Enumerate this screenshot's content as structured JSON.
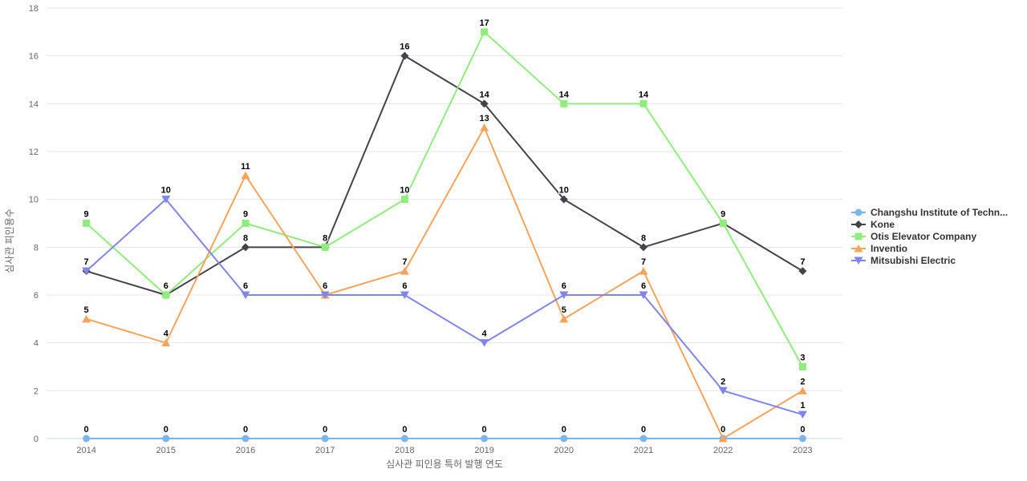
{
  "chart_data": {
    "type": "line",
    "categories": [
      "2014",
      "2015",
      "2016",
      "2017",
      "2018",
      "2019",
      "2020",
      "2021",
      "2022",
      "2023"
    ],
    "series": [
      {
        "name": "Changshu Institute of Techn...",
        "color": "#7cb5ec",
        "marker": "circle",
        "values": [
          0,
          0,
          0,
          0,
          0,
          0,
          0,
          0,
          0,
          0
        ]
      },
      {
        "name": "Kone",
        "color": "#434348",
        "marker": "diamond",
        "values": [
          7,
          6,
          8,
          8,
          16,
          14,
          10,
          8,
          9,
          7
        ]
      },
      {
        "name": "Otis Elevator Company",
        "color": "#90ed7d",
        "marker": "square",
        "values": [
          9,
          6,
          9,
          8,
          10,
          17,
          14,
          14,
          9,
          3
        ]
      },
      {
        "name": "Inventio",
        "color": "#f7a35c",
        "marker": "triangle",
        "values": [
          5,
          4,
          11,
          6,
          7,
          13,
          5,
          7,
          0,
          2
        ]
      },
      {
        "name": "Mitsubishi Electric",
        "color": "#8085e9",
        "marker": "triangle-down",
        "values": [
          7,
          10,
          6,
          6,
          6,
          4,
          6,
          6,
          2,
          1
        ]
      }
    ],
    "title": "",
    "xlabel": "심사관 피인용 특허 발행 연도",
    "ylabel": "심사관 피인용수",
    "ylim": [
      0,
      18
    ],
    "yticks": [
      0,
      2,
      4,
      6,
      8,
      10,
      12,
      14,
      16,
      18
    ],
    "grid": "horizontal",
    "grid_color": "#e6e6e6",
    "axis_line_color": "#ccd6eb",
    "legend_position": "right",
    "data_labels": true
  }
}
